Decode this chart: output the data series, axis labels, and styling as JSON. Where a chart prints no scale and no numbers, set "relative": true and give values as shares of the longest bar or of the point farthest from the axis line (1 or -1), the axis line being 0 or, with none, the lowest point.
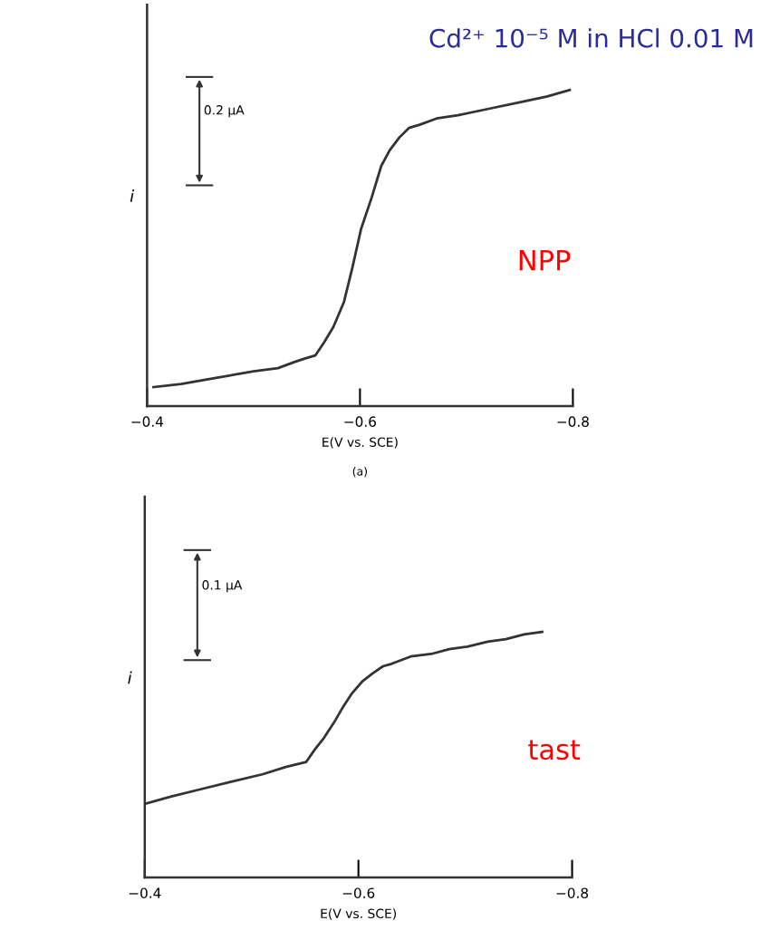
{
  "chart_data": [
    {
      "type": "line",
      "title": "Cd²⁺ 10⁻⁵ M in HCl 0.01 M",
      "xlabel": "E(V vs. SCE)",
      "ylabel": "i",
      "relative": true,
      "xlim": [
        -0.4,
        -0.8
      ],
      "xticks": [
        {
          "value": -0.4,
          "label": "−0.4"
        },
        {
          "value": -0.6,
          "label": "−0.6"
        },
        {
          "value": -0.8,
          "label": "−0.8"
        }
      ],
      "annotations": [
        "0.2 μA",
        "NPP",
        "(a)"
      ],
      "grid": false,
      "legend": false,
      "series": [
        {
          "color": "#333333",
          "x": [
            -0.406,
            -0.432,
            -0.466,
            -0.5,
            -0.523,
            -0.539,
            -0.548,
            -0.558,
            -0.566,
            -0.575,
            -0.585,
            -0.593,
            -0.601,
            -0.611,
            -0.62,
            -0.628,
            -0.637,
            -0.646,
            -0.656,
            -0.672,
            -0.692,
            -0.72,
            -0.748,
            -0.776,
            -0.797
          ],
          "values": [
            0.06,
            0.07,
            0.09,
            0.11,
            0.12,
            0.14,
            0.15,
            0.16,
            0.2,
            0.25,
            0.33,
            0.44,
            0.56,
            0.66,
            0.76,
            0.81,
            0.85,
            0.88,
            0.89,
            0.91,
            0.92,
            0.94,
            0.96,
            0.98,
            1
          ]
        }
      ]
    },
    {
      "type": "line",
      "xlabel": "E(V vs. SCE)",
      "ylabel": "i",
      "relative": true,
      "xlim": [
        -0.4,
        -0.8
      ],
      "xticks": [
        {
          "value": -0.4,
          "label": "−0.4"
        },
        {
          "value": -0.6,
          "label": "−0.6"
        },
        {
          "value": -0.8,
          "label": "−0.8"
        }
      ],
      "annotations": [
        "0.1 μA",
        "tast"
      ],
      "grid": false,
      "legend": false,
      "series": [
        {
          "color": "#333333",
          "x": [
            -0.4,
            -0.425,
            -0.453,
            -0.481,
            -0.51,
            -0.532,
            -0.551,
            -0.559,
            -0.568,
            -0.577,
            -0.585,
            -0.594,
            -0.604,
            -0.613,
            -0.623,
            -0.631,
            -0.649,
            -0.668,
            -0.685,
            -0.702,
            -0.721,
            -0.738,
            -0.755,
            -0.772
          ],
          "values": [
            0.3,
            0.33,
            0.36,
            0.39,
            0.42,
            0.45,
            0.47,
            0.52,
            0.57,
            0.63,
            0.69,
            0.75,
            0.8,
            0.83,
            0.86,
            0.87,
            0.9,
            0.91,
            0.93,
            0.94,
            0.96,
            0.97,
            0.99,
            1
          ]
        }
      ]
    }
  ]
}
